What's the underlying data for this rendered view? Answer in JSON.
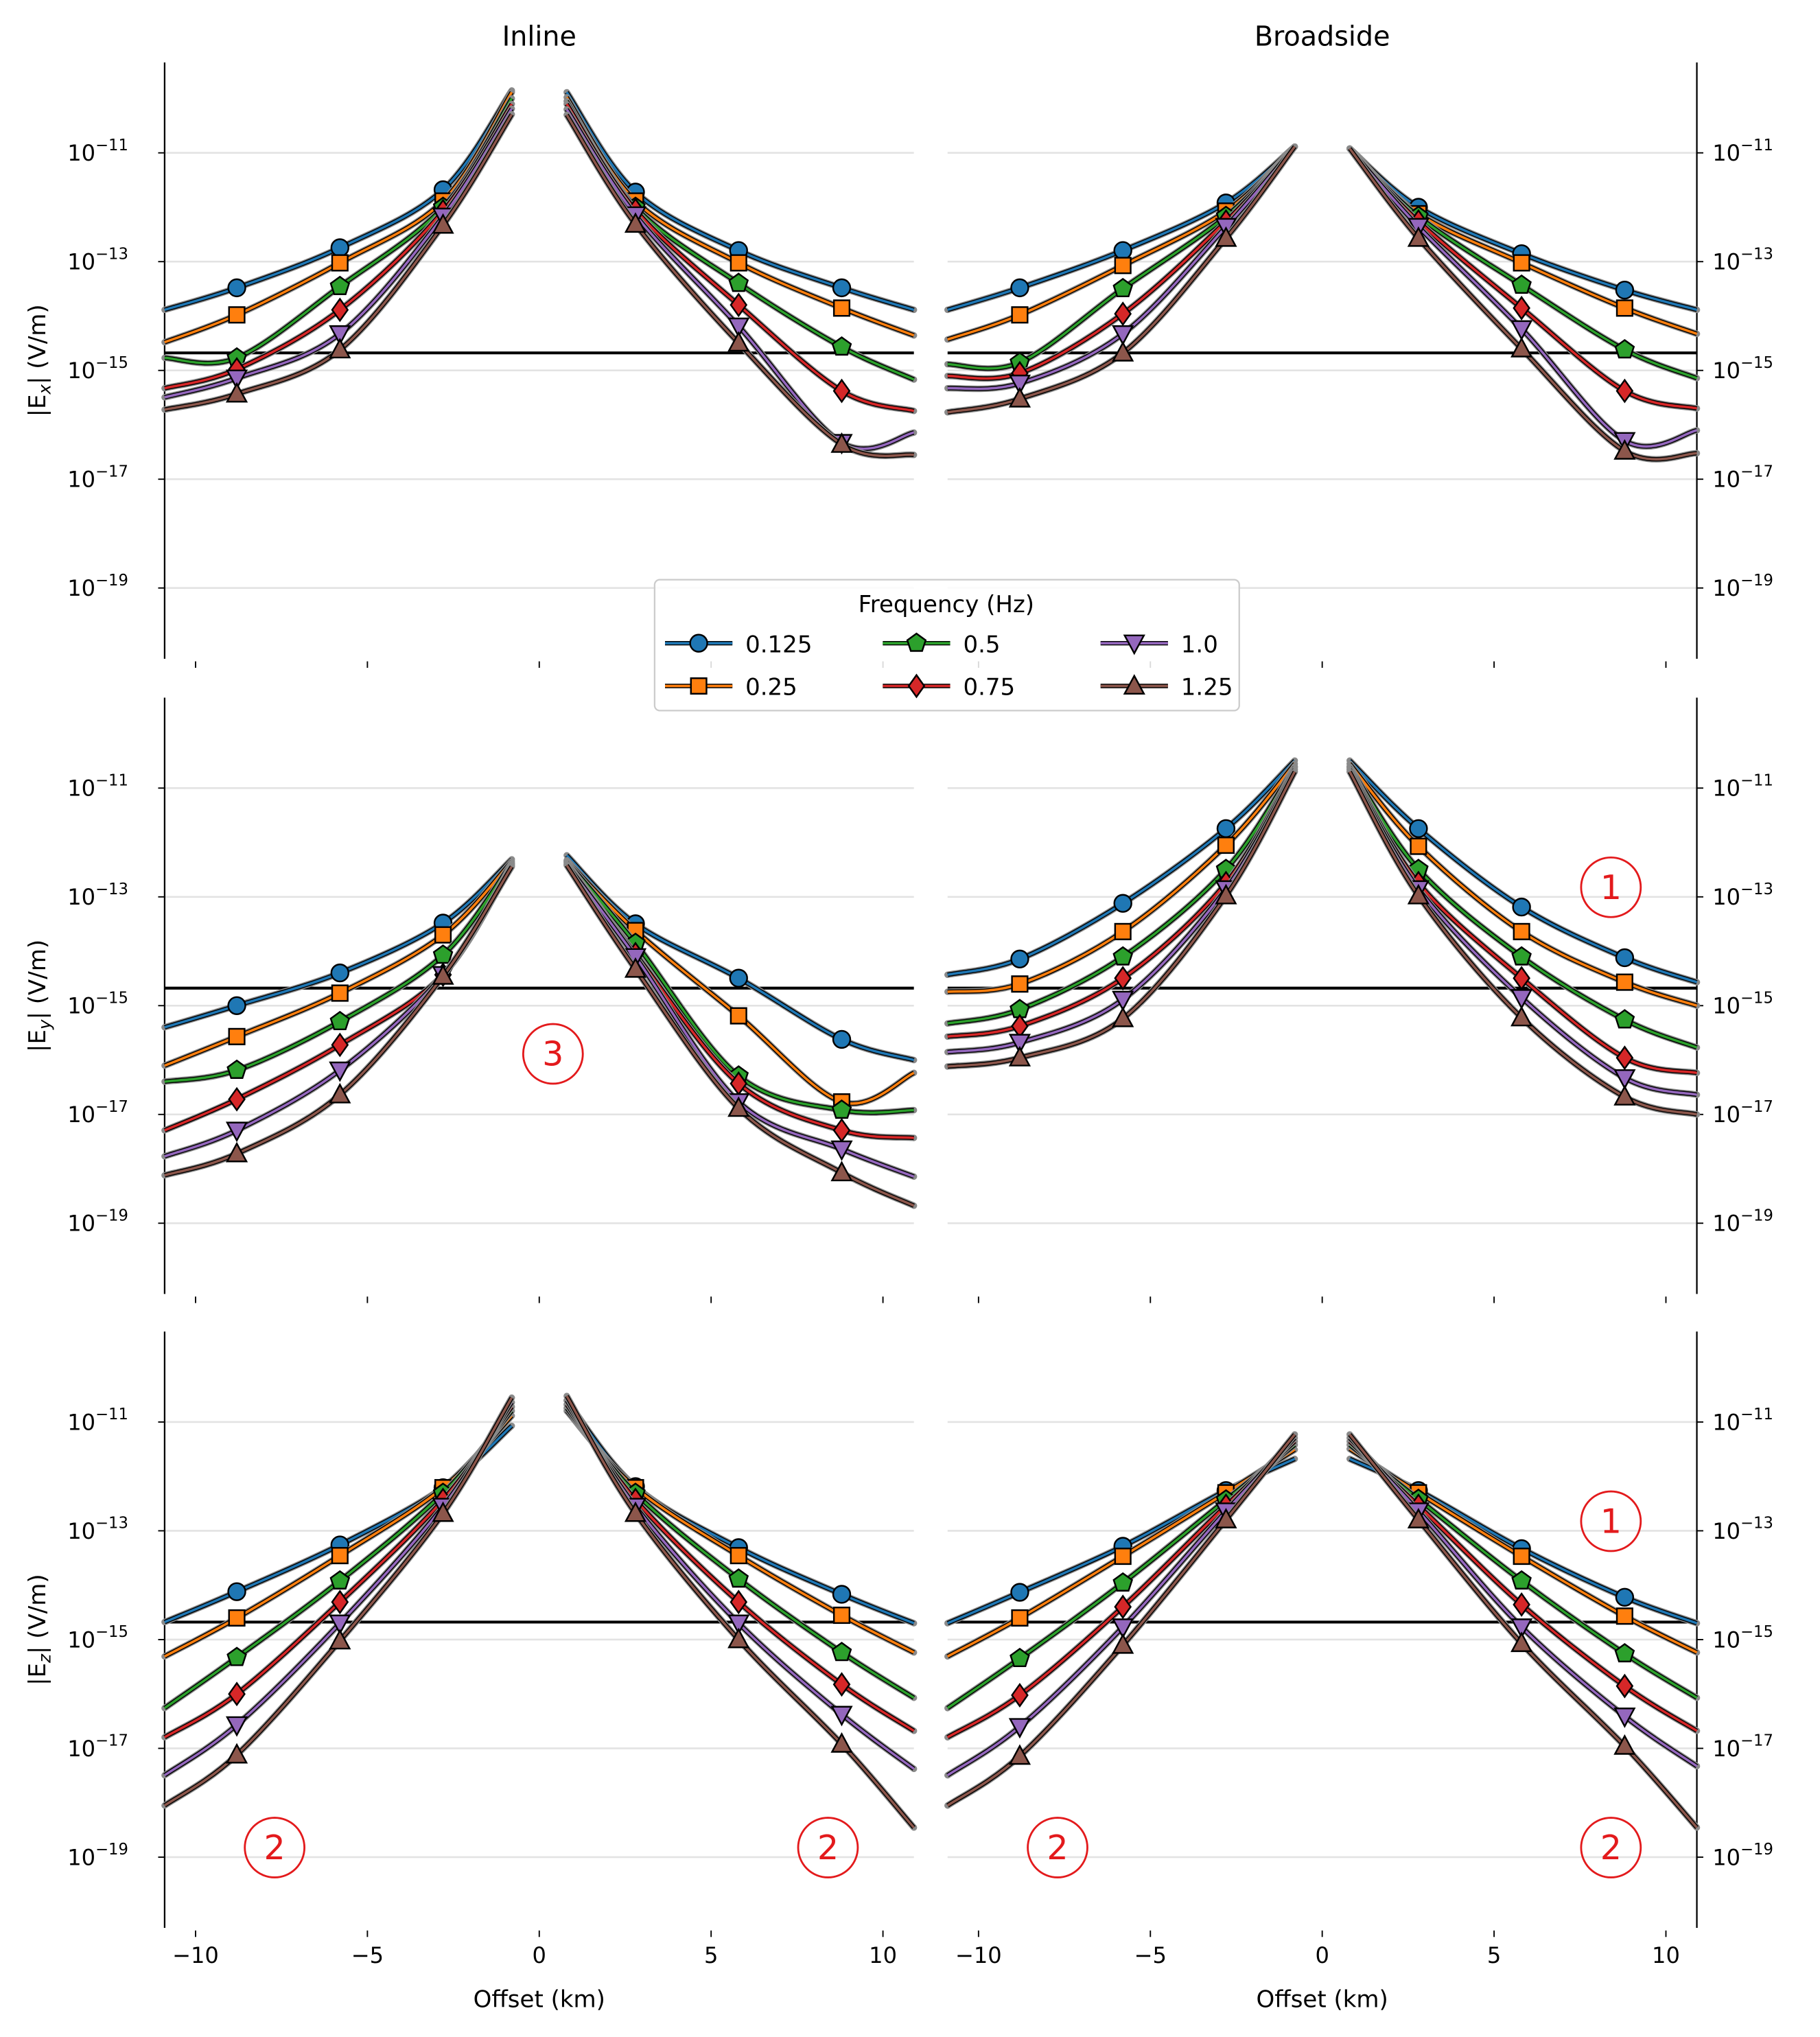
{
  "chart_data": {
    "type": "line",
    "layout": "3x2 grid",
    "column_titles": [
      "Inline",
      "Broadside"
    ],
    "xlabel": "Offset (km)",
    "xlim": [
      -10.9,
      10.9
    ],
    "xticks": [
      -10,
      -5,
      0,
      5,
      10
    ],
    "xtick_labels": [
      "−10",
      "−5",
      "0",
      "5",
      "10"
    ],
    "yscale": "log",
    "ylim": [
      5e-21,
      4.6e-10
    ],
    "yticks": [
      1e-11,
      1e-13,
      1e-15,
      1e-17,
      1e-19
    ],
    "ytick_exponents": [
      "−11",
      "−13",
      "−15",
      "−17",
      "−19"
    ],
    "grid": "horizontal at y ticks",
    "noise_floor": 2.1e-15,
    "x_left": [
      -10.9,
      -8.8,
      -5.8,
      -2.8,
      -0.8
    ],
    "x_right": [
      0.8,
      2.8,
      5.8,
      8.8,
      10.9
    ],
    "legend": {
      "title": "Frequency (Hz)",
      "placement": "center (between top and middle rows)",
      "entries": [
        "0.125",
        "0.25",
        "0.5",
        "0.75",
        "1.0",
        "1.25"
      ]
    },
    "series_style": [
      {
        "name": "0.125",
        "color": "#1f77b4",
        "marker": "circle"
      },
      {
        "name": "0.25",
        "color": "#ff7f0e",
        "marker": "square"
      },
      {
        "name": "0.5",
        "color": "#2ca02c",
        "marker": "pentagon"
      },
      {
        "name": "0.75",
        "color": "#d62728",
        "marker": "diamond"
      },
      {
        "name": "1.0",
        "color": "#9467bd",
        "marker": "triangle-down"
      },
      {
        "name": "1.25",
        "color": "#8c564b",
        "marker": "triangle-up"
      }
    ],
    "rows": [
      {
        "ylabel_main": "|E",
        "ylabel_sub": "x",
        "ylabel_tail": "| (V/m)",
        "panels": [
          {
            "column": "Inline",
            "annotations": [],
            "series": [
              {
                "left": [
                  1.3e-14,
                  3.3e-14,
                  1.8e-13,
                  2.1e-12,
                  1.4e-10
                ],
                "right": [
                  1.3e-10,
                  1.9e-12,
                  1.6e-13,
                  3.3e-14,
                  1.3e-14
                ]
              },
              {
                "left": [
                  3.3e-15,
                  1.05e-14,
                  9.5e-14,
                  1.3e-12,
                  1.3e-10
                ],
                "right": [
                  1.05e-10,
                  1.3e-12,
                  9.5e-14,
                  1.4e-14,
                  4.4e-15
                ]
              },
              {
                "left": [
                  1.7e-15,
                  1.7e-15,
                  3.5e-14,
                  1e-12,
                  1e-10
                ],
                "right": [
                  8.9e-11,
                  1e-12,
                  4e-14,
                  2.7e-15,
                  6.8e-16
                ]
              },
              {
                "left": [
                  4.7e-16,
                  1.05e-15,
                  1.3e-14,
                  8.5e-13,
                  7.9e-11
                ],
                "right": [
                  7.9e-11,
                  8.9e-13,
                  1.6e-14,
                  4.2e-16,
                  1.8e-16
                ]
              },
              {
                "left": [
                  3.2e-16,
                  7.2e-16,
                  4.7e-15,
                  6.8e-13,
                  6.5e-11
                ],
                "right": [
                  6.3e-11,
                  7.2e-13,
                  6.5e-15,
                  4.7e-17,
                  7.2e-17
                ]
              },
              {
                "left": [
                  1.9e-16,
                  3.7e-16,
                  2.4e-15,
                  4.7e-13,
                  5.1e-11
                ],
                "right": [
                  5e-11,
                  4.9e-13,
                  3.2e-15,
                  4.4e-17,
                  2.8e-17
                ]
              }
            ]
          },
          {
            "column": "Broadside",
            "annotations": [],
            "series": [
              {
                "left": [
                  1.3e-14,
                  3.3e-14,
                  1.6e-13,
                  1.2e-12,
                  1.3e-11
                ],
                "right": [
                  1.2e-11,
                  1e-12,
                  1.4e-13,
                  3e-14,
                  1.3e-14
                ]
              },
              {
                "left": [
                  3.7e-15,
                  1.05e-14,
                  8.5e-14,
                  8.5e-13,
                  1.3e-11
                ],
                "right": [
                  1.2e-11,
                  7.6e-13,
                  9.5e-14,
                  1.4e-14,
                  4.7e-15
                ]
              },
              {
                "left": [
                  1.3e-15,
                  1.4e-15,
                  3.2e-14,
                  6.8e-13,
                  1.3e-11
                ],
                "right": [
                  1.2e-11,
                  6.8e-13,
                  3.7e-14,
                  2.4e-15,
                  7.2e-16
                ]
              },
              {
                "left": [
                  7.9e-16,
                  8.9e-16,
                  1.1e-14,
                  5.5e-13,
                  1.3e-11
                ],
                "right": [
                  1.2e-11,
                  5.5e-13,
                  1.4e-14,
                  4.2e-16,
                  2e-16
                ]
              },
              {
                "left": [
                  4.7e-16,
                  5.8e-16,
                  4.7e-15,
                  4.4e-13,
                  1.3e-11
                ],
                "right": [
                  1.2e-11,
                  4.4e-13,
                  5.8e-15,
                  5.1e-17,
                  7.9e-17
                ]
              },
              {
                "left": [
                  1.7e-16,
                  3e-16,
                  2.1e-15,
                  2.7e-13,
                  1.3e-11
                ],
                "right": [
                  1.2e-11,
                  2.7e-13,
                  2.5e-15,
                  3.3e-17,
                  3e-17
                ]
              }
            ]
          }
        ]
      },
      {
        "ylabel_main": "|E",
        "ylabel_sub": "y",
        "ylabel_tail": "| (V/m)",
        "panels": [
          {
            "column": "Inline",
            "annotations": [
              {
                "text": "3",
                "x": 0.4,
                "y": 1.3e-16
              }
            ],
            "series": [
              {
                "left": [
                  4e-16,
                  1e-15,
                  4e-15,
                  3.3e-14,
                  4.9e-13
                ],
                "right": [
                  5.8e-13,
                  3.2e-14,
                  3.2e-15,
                  2.4e-16,
                  1e-16
                ]
              },
              {
                "left": [
                  7.9e-17,
                  2.7e-16,
                  1.7e-15,
                  2e-14,
                  4.5e-13
                ],
                "right": [
                  4.7e-13,
                  2.4e-14,
                  6.5e-16,
                  1.7e-17,
                  5.8e-17
                ]
              },
              {
                "left": [
                  4e-17,
                  6.5e-17,
                  5.1e-16,
                  8.5e-15,
                  4.2e-13
                ],
                "right": [
                  4.5e-13,
                  1.4e-14,
                  5.1e-17,
                  1.2e-17,
                  1.2e-17
                ]
              },
              {
                "left": [
                  5.1e-18,
                  1.9e-17,
                  1.9e-16,
                  3.7e-15,
                  4e-13
                ],
                "right": [
                  4.3e-13,
                  8.9e-15,
                  3.7e-17,
                  5.1e-18,
                  3.7e-18
                ]
              },
              {
                "left": [
                  1.7e-18,
                  5.1e-18,
                  6.5e-17,
                  3.7e-15,
                  3.8e-13
                ],
                "right": [
                  4e-13,
                  7.9e-15,
                  1.7e-17,
                  2.3e-18,
                  7.2e-19
                ]
              },
              {
                "left": [
                  7.6e-19,
                  1.9e-18,
                  2.3e-17,
                  3.5e-15,
                  3.6e-13
                ],
                "right": [
                  3.8e-13,
                  4.7e-15,
                  1.3e-17,
                  8.5e-19,
                  2.1e-19
                ]
              }
            ]
          },
          {
            "column": "Broadside",
            "annotations": [
              {
                "text": "1",
                "x": 8.4,
                "y": 1.5e-13
              }
            ],
            "series": [
              {
                "left": [
                  3.7e-15,
                  7.2e-15,
                  7.6e-14,
                  1.8e-12,
                  3.2e-11
                ],
                "right": [
                  3.2e-11,
                  1.8e-12,
                  6.5e-14,
                  7.6e-15,
                  2.7e-15
                ]
              },
              {
                "left": [
                  1.8e-15,
                  2.5e-15,
                  2.3e-14,
                  8.9e-13,
                  2.8e-11
                ],
                "right": [
                  2.8e-11,
                  8.5e-13,
                  2.3e-14,
                  2.7e-15,
                  1e-15
                ]
              },
              {
                "left": [
                  4.7e-16,
                  8.5e-16,
                  7.9e-15,
                  3.2e-13,
                  2.5e-11
                ],
                "right": [
                  2.5e-11,
                  3.2e-13,
                  7.9e-15,
                  5.5e-16,
                  1.7e-16
                ]
              },
              {
                "left": [
                  2.7e-16,
                  4.2e-16,
                  3.2e-15,
                  1.8e-13,
                  2.4e-11
                ],
                "right": [
                  2.4e-11,
                  1.8e-13,
                  3.2e-15,
                  1.1e-16,
                  5.8e-17
                ]
              },
              {
                "left": [
                  1.4e-16,
                  2.1e-16,
                  1.3e-15,
                  1.4e-13,
                  2.2e-11
                ],
                "right": [
                  2.2e-11,
                  1.4e-13,
                  1.4e-15,
                  4.7e-17,
                  2.3e-17
                ]
              },
              {
                "left": [
                  7.6e-17,
                  1.1e-16,
                  5.8e-16,
                  1.05e-13,
                  2e-11
                ],
                "right": [
                  2e-11,
                  1.05e-13,
                  6e-16,
                  2.1e-17,
                  1e-17
                ]
              }
            ]
          }
        ]
      },
      {
        "ylabel_main": "|E",
        "ylabel_sub": "z",
        "ylabel_tail": "| (V/m)",
        "panels": [
          {
            "column": "Inline",
            "annotations": [
              {
                "text": "2",
                "x": -7.7,
                "y": 1.5e-19
              },
              {
                "text": "2",
                "x": 8.4,
                "y": 1.5e-19
              }
            ],
            "series": [
              {
                "left": [
                  2.1e-15,
                  7.6e-15,
                  5.5e-14,
                  6.2e-13,
                  8.5e-12
                ],
                "right": [
                  2.5e-11,
                  6.5e-13,
                  4.9e-14,
                  6.8e-15,
                  2e-15
                ]
              },
              {
                "left": [
                  4.9e-16,
                  2.5e-15,
                  3.5e-14,
                  6.2e-13,
                  1.3e-11
                ],
                "right": [
                  1.6e-11,
                  6.2e-13,
                  3.5e-14,
                  2.8e-15,
                  5.8e-16
                ]
              },
              {
                "left": [
                  5.5e-17,
                  4.7e-16,
                  1.2e-14,
                  4.9e-13,
                  1.6e-11
                ],
                "right": [
                  1.8e-11,
                  4.9e-13,
                  1.3e-14,
                  5.8e-16,
                  8.5e-17
                ]
              },
              {
                "left": [
                  1.6e-17,
                  1e-16,
                  4.9e-15,
                  3.7e-13,
                  1.9e-11
                ],
                "right": [
                  2.1e-11,
                  3.7e-13,
                  4.9e-15,
                  1.5e-16,
                  2.1e-17
                ]
              },
              {
                "left": [
                  3.2e-18,
                  2.7e-17,
                  2e-15,
                  2.8e-13,
                  2.3e-11
                ],
                "right": [
                  2.5e-11,
                  2.8e-13,
                  2e-15,
                  4.2e-17,
                  4.2e-18
                ]
              },
              {
                "left": [
                  8.9e-19,
                  7.6e-18,
                  9.5e-16,
                  2.1e-13,
                  2.8e-11
                ],
                "right": [
                  3e-11,
                  2.1e-13,
                  1e-15,
                  1.2e-17,
                  3.5e-19
                ]
              }
            ]
          },
          {
            "column": "Broadside",
            "annotations": [
              {
                "text": "1",
                "x": 8.4,
                "y": 1.5e-13
              },
              {
                "text": "2",
                "x": -7.7,
                "y": 1.5e-19
              },
              {
                "text": "2",
                "x": 8.4,
                "y": 1.5e-19
              }
            ],
            "series": [
              {
                "left": [
                  2e-15,
                  7.4e-15,
                  5.2e-14,
                  5.5e-13,
                  2.1e-12
                ],
                "right": [
                  2.1e-12,
                  5.5e-13,
                  4.7e-14,
                  6e-15,
                  2e-15
                ]
              },
              {
                "left": [
                  4.9e-16,
                  2.5e-15,
                  3.4e-14,
                  5e-13,
                  3.1e-12
                ],
                "right": [
                  3.2e-12,
                  5e-13,
                  3.4e-14,
                  2.7e-15,
                  5.8e-16
                ]
              },
              {
                "left": [
                  5.5e-17,
                  4.5e-16,
                  1.1e-14,
                  3.7e-13,
                  3.8e-12
                ],
                "right": [
                  3.8e-12,
                  3.8e-13,
                  1.2e-14,
                  5.5e-16,
                  8.5e-17
                ]
              },
              {
                "left": [
                  1.6e-17,
                  9.5e-17,
                  4e-15,
                  2.9e-13,
                  4.4e-12
                ],
                "right": [
                  4.4e-12,
                  2.9e-13,
                  4.4e-15,
                  1.4e-16,
                  2.1e-17
                ]
              },
              {
                "left": [
                  3.2e-18,
                  2.5e-17,
                  1.7e-15,
                  2.3e-13,
                  5.1e-12
                ],
                "right": [
                  5.1e-12,
                  2.3e-13,
                  1.7e-15,
                  3.9e-17,
                  4.7e-18
                ]
              },
              {
                "left": [
                  8.9e-19,
                  7.2e-18,
                  7.9e-16,
                  1.6e-13,
                  5.9e-12
                ],
                "right": [
                  5.9e-12,
                  1.6e-13,
                  8.5e-16,
                  1.1e-17,
                  3.5e-19
                ]
              }
            ]
          }
        ]
      }
    ]
  }
}
